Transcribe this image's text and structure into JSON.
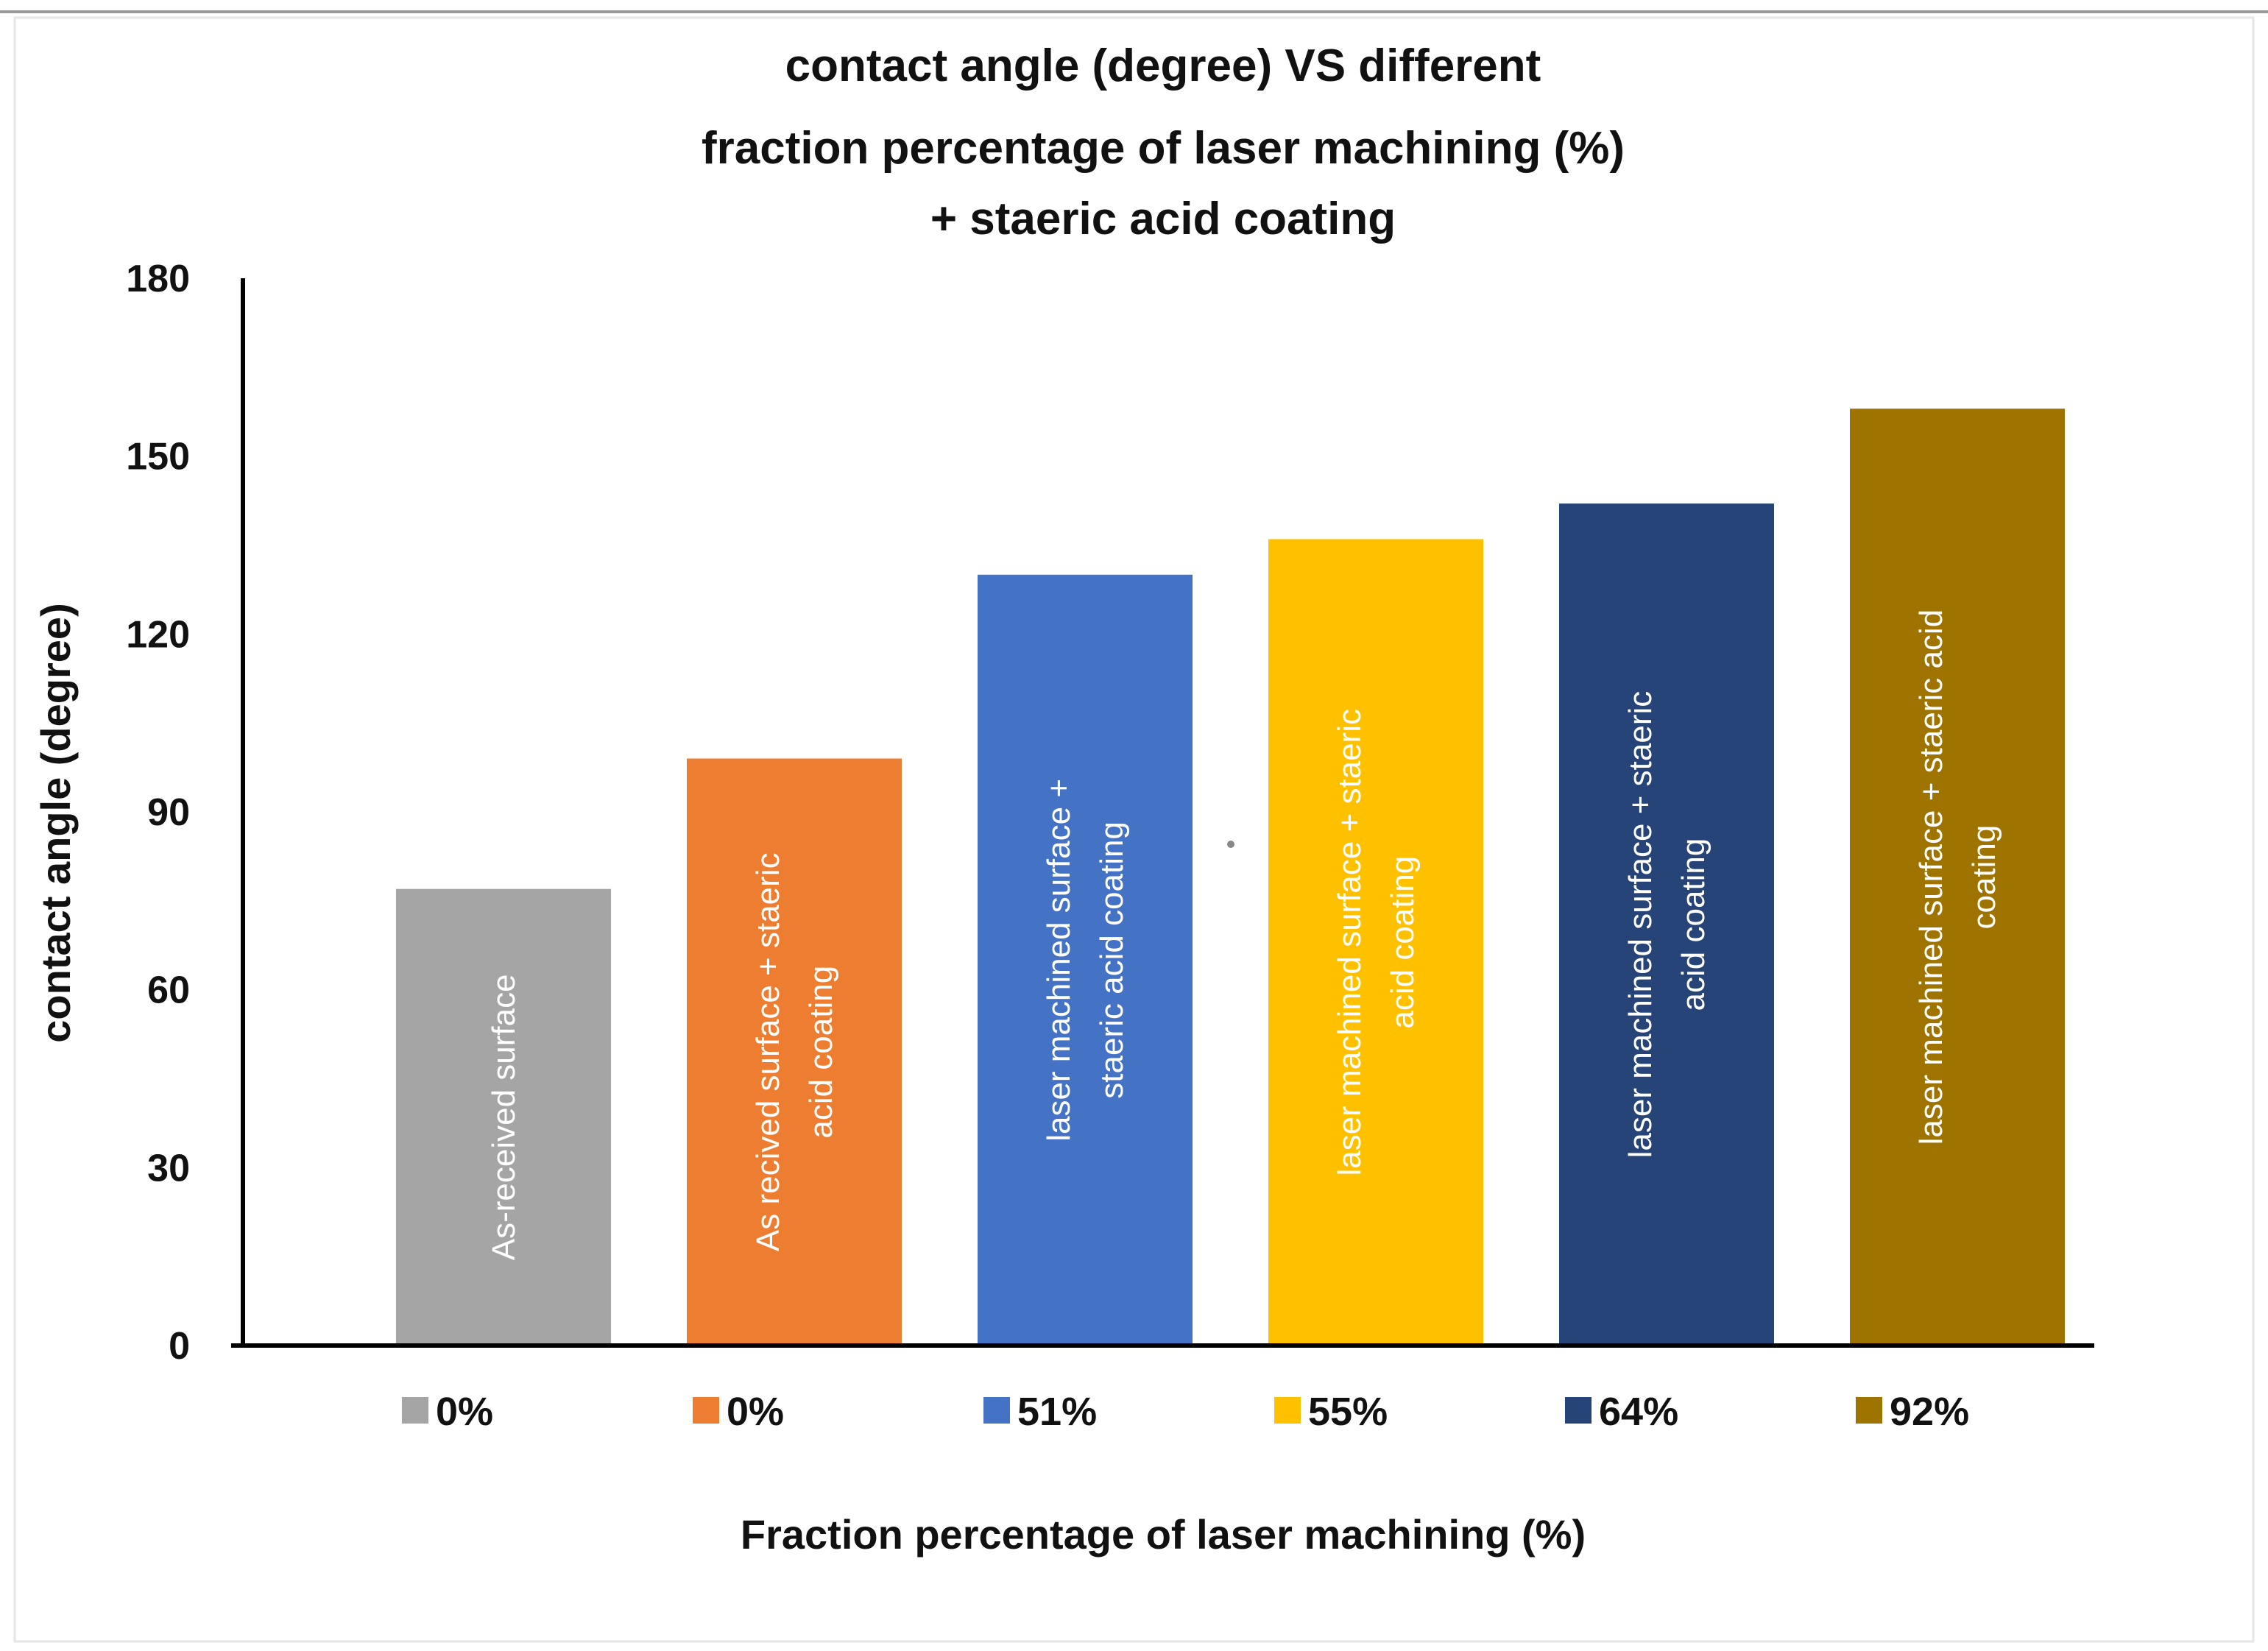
{
  "chart_data": {
    "type": "bar",
    "title": [
      "contact angle (degree) VS different",
      "fraction percentage of laser machining (%)",
      "+ staeric acid coating"
    ],
    "xlabel": "Fraction percentage of laser machining (%)",
    "ylabel": "contact angle (degree)",
    "ylim": [
      0,
      180
    ],
    "yticks": [
      0,
      30,
      60,
      90,
      120,
      150,
      180
    ],
    "grid": false,
    "legend_position": "bottom",
    "categories": [
      "0%",
      "0%",
      "51%",
      "55%",
      "64%",
      "92%"
    ],
    "values": [
      77,
      99,
      130,
      136,
      142,
      158
    ],
    "bar_labels": [
      [
        "As-received surface"
      ],
      [
        "As recived surface + staeric",
        "acid coating"
      ],
      [
        "laser machined surface +",
        "staeric acid coating"
      ],
      [
        "laser machined surface + staeric",
        "acid coating"
      ],
      [
        "laser machined surface + staeric",
        "acid coating"
      ],
      [
        "laser machined surface + staeric acid",
        "coating"
      ]
    ],
    "colors": [
      "#a5a5a5",
      "#ed7d31",
      "#4472c4",
      "#ffc000",
      "#264478",
      "#9e7300"
    ]
  }
}
